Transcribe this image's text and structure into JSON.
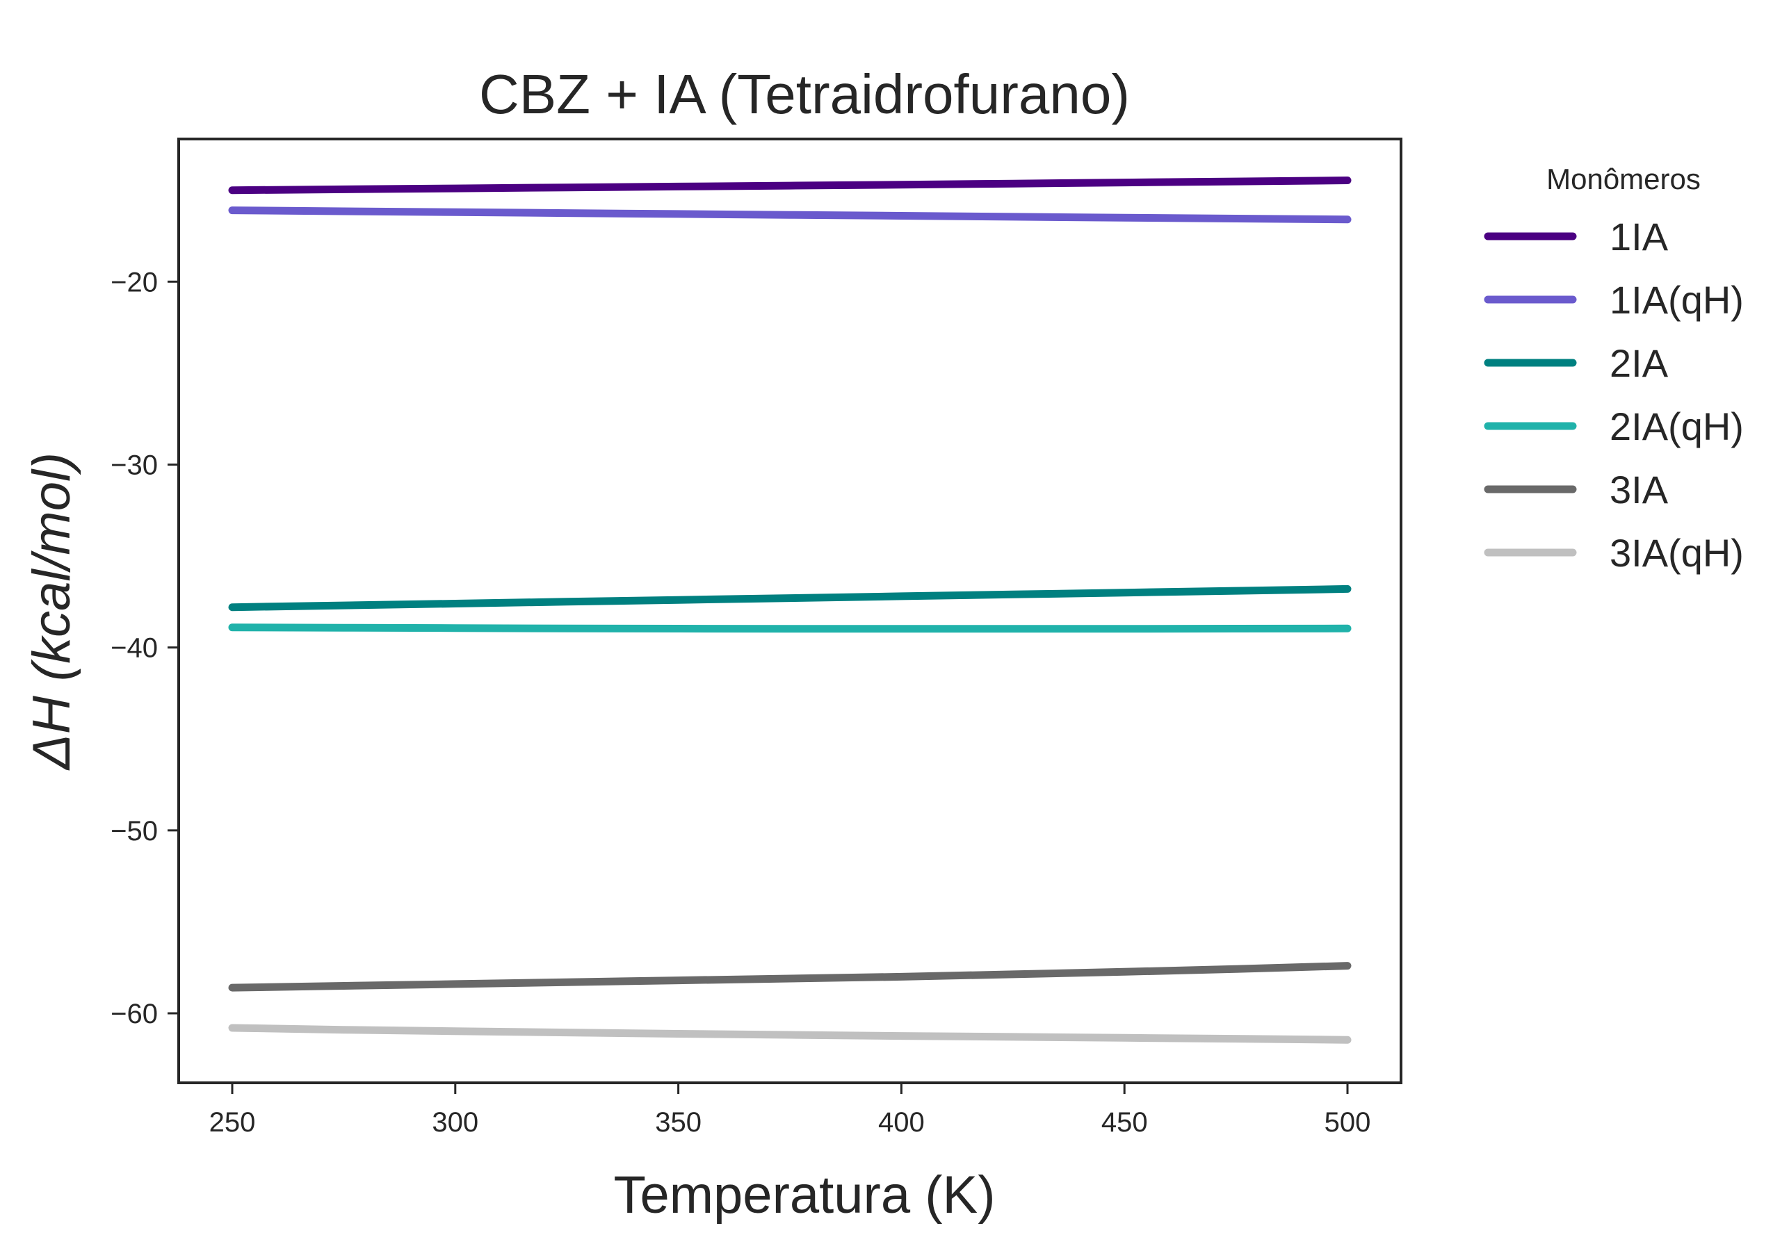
{
  "chart_data": {
    "type": "line",
    "title": "CBZ + IA (Tetraidrofurano)",
    "xlabel": "Temperatura (K)",
    "ylabel": "ΔH (kcal/mol)",
    "x": [
      250,
      275,
      300,
      325,
      350,
      375,
      400,
      425,
      450,
      475,
      500
    ],
    "xlim": [
      238,
      512
    ],
    "ylim": [
      -63.8,
      -12.2
    ],
    "xticks": [
      250,
      300,
      350,
      400,
      450,
      500
    ],
    "xtick_labels": [
      "250",
      "300",
      "350",
      "400",
      "450",
      "500"
    ],
    "yticks": [
      -20,
      -30,
      -40,
      -50,
      -60
    ],
    "ytick_labels": [
      "−20",
      "−30",
      "−40",
      "−50",
      "−60"
    ],
    "grid": false,
    "legend": {
      "title": "Monômeros",
      "placement": "outside-right"
    },
    "series": [
      {
        "name": "1IA",
        "color": "#4b0082",
        "values": [
          -15.0,
          -14.95,
          -14.9,
          -14.85,
          -14.8,
          -14.75,
          -14.7,
          -14.64,
          -14.58,
          -14.52,
          -14.46
        ]
      },
      {
        "name": "1IA(qH)",
        "color": "#6a5acd",
        "values": [
          -16.1,
          -16.15,
          -16.2,
          -16.25,
          -16.3,
          -16.35,
          -16.4,
          -16.45,
          -16.5,
          -16.55,
          -16.6
        ]
      },
      {
        "name": "2IA",
        "color": "#008080",
        "values": [
          -37.8,
          -37.7,
          -37.6,
          -37.5,
          -37.4,
          -37.3,
          -37.2,
          -37.1,
          -37.0,
          -36.9,
          -36.8
        ]
      },
      {
        "name": "2IA(qH)",
        "color": "#20b2aa",
        "values": [
          -38.9,
          -38.92,
          -38.94,
          -38.96,
          -38.97,
          -38.98,
          -38.98,
          -38.98,
          -38.98,
          -38.97,
          -38.96
        ]
      },
      {
        "name": "3IA",
        "color": "#696969",
        "values": [
          -58.6,
          -58.5,
          -58.4,
          -58.3,
          -58.2,
          -58.1,
          -58.0,
          -57.87,
          -57.73,
          -57.58,
          -57.4
        ]
      },
      {
        "name": "3IA(qH)",
        "color": "#c0c0c0",
        "values": [
          -60.8,
          -60.9,
          -60.98,
          -61.05,
          -61.12,
          -61.18,
          -61.24,
          -61.29,
          -61.34,
          -61.39,
          -61.45
        ]
      }
    ]
  }
}
